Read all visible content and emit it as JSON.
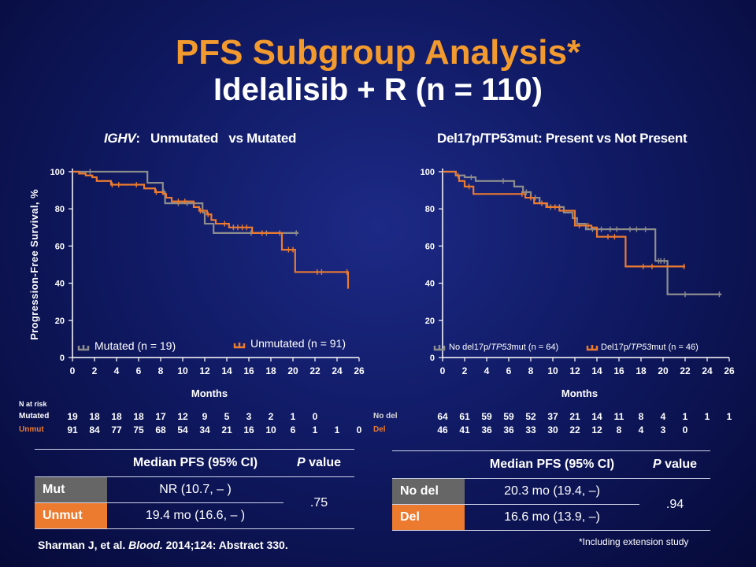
{
  "title": "PFS Subgroup Analysis*",
  "subtitle": "Idelalisib + R (n = 110)",
  "left_panel": {
    "title_italic": "IGHV",
    "title_rest": ":   Unmutated   vs Mutated",
    "ylabel": "Progression-Free Survival, %",
    "xlabel": "Months",
    "legend": {
      "mutated": "Mutated",
      "mutated_n": "(n = 19)",
      "unmutated": "Unmutated",
      "unmutated_n": "(n = 91)"
    },
    "risk_title": "N at risk",
    "risk": {
      "row1": {
        "label": "Mutated",
        "values": [
          "19",
          "18",
          "18",
          "18",
          "17",
          "12",
          "9",
          "5",
          "3",
          "2",
          "1",
          "0"
        ]
      },
      "row2": {
        "label": "Unmut",
        "values": [
          "91",
          "84",
          "77",
          "75",
          "68",
          "54",
          "34",
          "21",
          "16",
          "10",
          "6",
          "1",
          "1",
          "0"
        ]
      }
    },
    "table": {
      "col1": "Median PFS (95% CI)",
      "col2_italic": "P",
      "col2_rest": " value",
      "row1_label": "Mut",
      "row1_value": "NR (10.7, – )",
      "row2_label": "Unmut",
      "row2_value": "19.4 mo (16.6, – )",
      "p": ".75"
    }
  },
  "right_panel": {
    "title": "Del17p/TP53mut: Present vs Not Present",
    "xlabel": "Months",
    "legend": {
      "nodel_pre": "No  del17p/",
      "nodel_it": "TP53",
      "nodel_post": "mut  (n = 64)",
      "del_pre": "Del17p/",
      "del_it": "TP53",
      "del_post": "mut  (n = 46)"
    },
    "risk": {
      "row1": {
        "label": "No del",
        "values": [
          "64",
          "61",
          "59",
          "59",
          "52",
          "37",
          "21",
          "14",
          "11",
          "8",
          "4",
          "1",
          "1",
          "1"
        ]
      },
      "row2": {
        "label": "Del",
        "values": [
          "46",
          "41",
          "36",
          "36",
          "33",
          "30",
          "22",
          "12",
          "8",
          "4",
          "3",
          "0"
        ]
      }
    },
    "table": {
      "col1": "Median PFS (95% CI)",
      "col2_italic": "P",
      "col2_rest": " value",
      "row1_label": "No del",
      "row1_value": "20.3 mo (19.4, –)",
      "row2_label": "Del",
      "row2_value": "16.6 mo (13.9, –)",
      "p": ".94"
    }
  },
  "citation": {
    "pre": "Sharman J, et al. ",
    "italic": "Blood.",
    "post": " 2014;124: Abstract 330."
  },
  "footnote": "*Including  extension study",
  "colors": {
    "gray": "#8d8d8d",
    "orange": "#ec7b2f",
    "title_orange": "#f39a2e",
    "background": "#101a64"
  },
  "chart_data": [
    {
      "type": "line",
      "xlabel": "Months",
      "ylabel": "Progression-Free Survival, %",
      "xlim": [
        0,
        26
      ],
      "ylim": [
        0,
        100
      ],
      "xticks": [
        0,
        2,
        4,
        6,
        8,
        10,
        12,
        14,
        16,
        18,
        20,
        22,
        24,
        26
      ],
      "yticks": [
        0,
        20,
        40,
        60,
        80,
        100
      ],
      "series": [
        {
          "name": "Mutated",
          "color": "#8d8d8d",
          "x": [
            0,
            1.5,
            6.8,
            8.2,
            8.4,
            8.6,
            11.8,
            12,
            12.8,
            20.5
          ],
          "y": [
            100,
            100,
            94,
            89,
            83,
            83,
            78,
            72,
            67,
            67
          ],
          "censor_x": [
            1.6,
            8.3,
            9.6,
            10.4,
            16.2,
            17.6,
            18.8,
            20.3
          ]
        },
        {
          "name": "Unmutated",
          "color": "#ec7b2f",
          "x": [
            0,
            0.6,
            1.2,
            1.8,
            2.2,
            3.5,
            6.5,
            7.5,
            8.2,
            8.5,
            9.0,
            11.0,
            11.5,
            12.2,
            12.6,
            13.0,
            14.2,
            16.3,
            19.0,
            20.2,
            25.0
          ],
          "y": [
            100,
            99,
            98,
            97,
            95,
            93,
            91,
            89,
            88,
            86,
            84,
            81,
            79,
            77,
            74,
            72,
            70,
            67,
            58,
            46,
            37
          ],
          "censor_x": [
            3.6,
            4.2,
            5.8,
            7.6,
            9.6,
            10.2,
            11.6,
            12.3,
            13.8,
            14.6,
            15.0,
            15.4,
            15.8,
            17.2,
            19.6,
            20.0,
            22.2,
            22.6,
            24.9
          ]
        }
      ]
    },
    {
      "type": "line",
      "xlabel": "Months",
      "xlim": [
        0,
        26
      ],
      "ylim": [
        0,
        100
      ],
      "xticks": [
        0,
        2,
        4,
        6,
        8,
        10,
        12,
        14,
        16,
        18,
        20,
        22,
        24,
        26
      ],
      "yticks": [
        0,
        20,
        40,
        60,
        80,
        100
      ],
      "series": [
        {
          "name": "No del17p/TP53mut",
          "color": "#8d8d8d",
          "x": [
            0,
            1.2,
            2.0,
            3.0,
            6.5,
            7.3,
            8.0,
            8.8,
            9.5,
            11.0,
            11.8,
            12.2,
            13.0,
            19.0,
            19.3,
            20.4,
            25.3
          ],
          "y": [
            100,
            98,
            97,
            95,
            92,
            89,
            86,
            83,
            81,
            78,
            75,
            72,
            69,
            69,
            52,
            34,
            34
          ],
          "censor_x": [
            1.4,
            2.6,
            5.5,
            7.6,
            8.4,
            9.8,
            10.6,
            13.6,
            14.4,
            15.2,
            15.8,
            17.0,
            17.6,
            18.4,
            19.6,
            19.8,
            20.1,
            22.0,
            25.1
          ]
        },
        {
          "name": "Del17p/TP53mut",
          "color": "#ec7b2f",
          "x": [
            0,
            1.2,
            1.5,
            2.0,
            2.8,
            6.8,
            7.5,
            8.3,
            9.4,
            10.6,
            12.0,
            13.5,
            14.0,
            16.6,
            22.0
          ],
          "y": [
            100,
            98,
            95,
            92,
            88,
            88,
            86,
            83,
            81,
            79,
            71,
            70,
            65,
            49,
            49
          ],
          "censor_x": [
            2.4,
            7.2,
            8.0,
            9.0,
            10.2,
            12.4,
            13.2,
            15.0,
            15.6,
            18.2,
            19.0,
            21.9
          ]
        }
      ]
    }
  ]
}
